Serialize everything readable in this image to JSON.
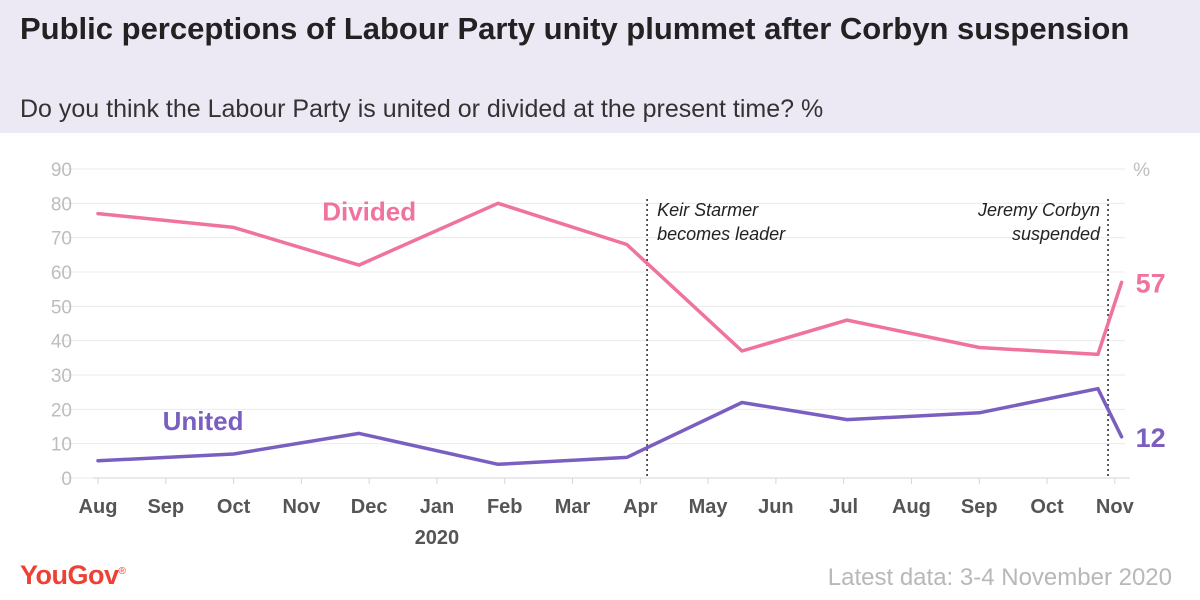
{
  "header": {
    "title": "Public perceptions of Labour Party unity plummet after Corbyn suspension",
    "subtitle": "Do you think the Labour Party is united or divided at the present time? %"
  },
  "footer": {
    "logo": "YouGov",
    "source": "Latest data: 3-4 November 2020"
  },
  "chart_data": {
    "type": "line",
    "ylim": [
      0,
      90
    ],
    "yticks": [
      0,
      10,
      20,
      30,
      40,
      50,
      60,
      70,
      80,
      90
    ],
    "y_unit": "%",
    "x_range_months": [
      0,
      15.15
    ],
    "month_ticks": [
      {
        "label": "Aug",
        "m": 0
      },
      {
        "label": "Sep",
        "m": 1
      },
      {
        "label": "Oct",
        "m": 2
      },
      {
        "label": "Nov",
        "m": 3
      },
      {
        "label": "Dec",
        "m": 4
      },
      {
        "label": "Jan",
        "m": 5
      },
      {
        "label": "Feb",
        "m": 6
      },
      {
        "label": "Mar",
        "m": 7
      },
      {
        "label": "Apr",
        "m": 8
      },
      {
        "label": "May",
        "m": 9
      },
      {
        "label": "Jun",
        "m": 10
      },
      {
        "label": "Jul",
        "m": 11
      },
      {
        "label": "Aug",
        "m": 12
      },
      {
        "label": "Sep",
        "m": 13
      },
      {
        "label": "Oct",
        "m": 14
      },
      {
        "label": "Nov",
        "m": 15
      }
    ],
    "year_label": {
      "text": "2020",
      "m": 5
    },
    "series": [
      {
        "name": "Divided",
        "color": "#f0729f",
        "points": [
          [
            0,
            77
          ],
          [
            2.0,
            73
          ],
          [
            3.85,
            62
          ],
          [
            5.9,
            80
          ],
          [
            7.8,
            68
          ],
          [
            9.5,
            37
          ],
          [
            11.05,
            46
          ],
          [
            13.0,
            38
          ],
          [
            14.75,
            36
          ],
          [
            15.1,
            57
          ]
        ],
        "label_pos": [
          4.0,
          75
        ],
        "end_label": "57"
      },
      {
        "name": "United",
        "color": "#7a5fc0",
        "points": [
          [
            0,
            5
          ],
          [
            2.0,
            7
          ],
          [
            3.85,
            13
          ],
          [
            5.9,
            4
          ],
          [
            7.8,
            6
          ],
          [
            9.5,
            22
          ],
          [
            11.05,
            17
          ],
          [
            13.0,
            19
          ],
          [
            14.75,
            26
          ],
          [
            15.1,
            12
          ]
        ],
        "label_pos": [
          1.55,
          14
        ],
        "end_label": "12"
      }
    ],
    "annotations": [
      {
        "m": 8.1,
        "lines": [
          "Keir Starmer",
          "becomes leader"
        ],
        "align": "left"
      },
      {
        "m": 14.9,
        "lines": [
          "Jeremy Corbyn",
          "suspended"
        ],
        "align": "right"
      }
    ]
  }
}
